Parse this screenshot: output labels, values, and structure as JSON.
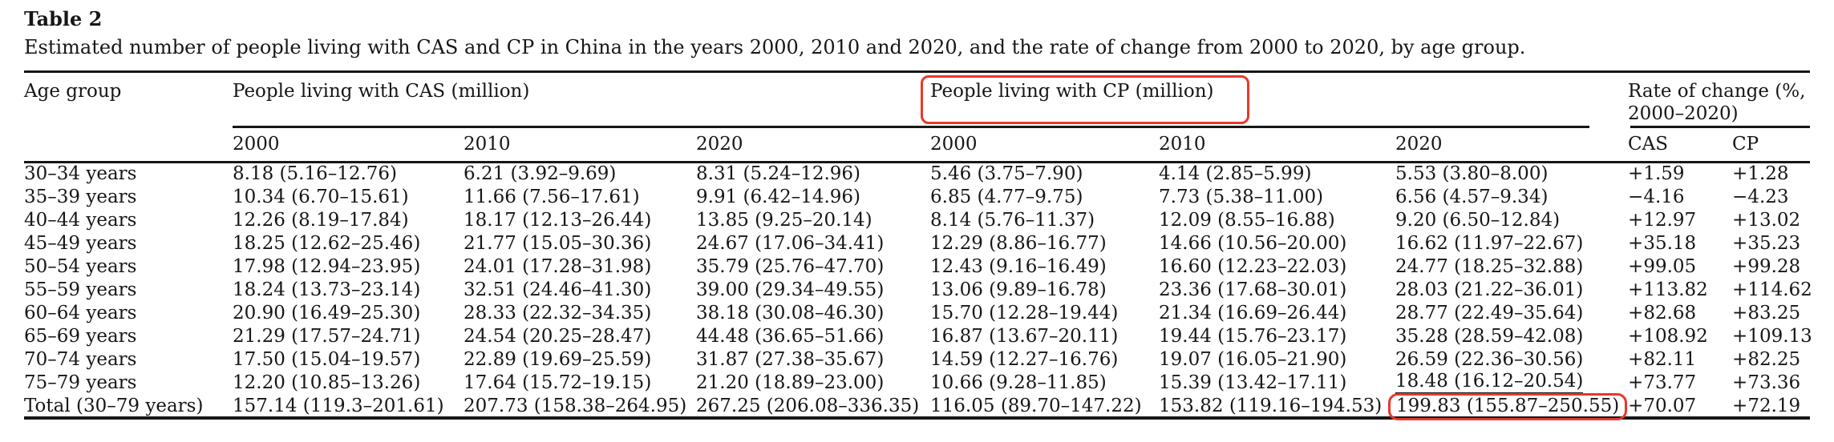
{
  "page": {
    "background_color": "#ffffff",
    "text_color": "#161616",
    "annotation_red": "#e8382a"
  },
  "table": {
    "label": "Table 2",
    "caption": "Estimated number of people living with CAS and CP in China in the years 2000, 2010 and 2020, and the rate of change from 2000 to 2020, by age group.",
    "header": {
      "age_group": "Age group",
      "cas_group": "People living with CAS (million)",
      "cp_group": "People living with CP (million)",
      "rate_group": "Rate of change (%, 2000–2020)",
      "cas_years": [
        "2000",
        "2010",
        "2020"
      ],
      "cp_years": [
        "2000",
        "2010",
        "2020"
      ],
      "rate_cols": [
        "CAS",
        "CP"
      ]
    },
    "rows": [
      {
        "age": "30–34 years",
        "cas": [
          "8.18 (5.16–12.76)",
          "6.21 (3.92–9.69)",
          "8.31 (5.24–12.96)"
        ],
        "cp": [
          "5.46 (3.75–7.90)",
          "4.14 (2.85–5.99)",
          "5.53 (3.80–8.00)"
        ],
        "rate": [
          "+1.59",
          "+1.28"
        ]
      },
      {
        "age": "35–39 years",
        "cas": [
          "10.34 (6.70–15.61)",
          "11.66 (7.56–17.61)",
          "9.91 (6.42–14.96)"
        ],
        "cp": [
          "6.85 (4.77–9.75)",
          "7.73 (5.38–11.00)",
          "6.56 (4.57–9.34)"
        ],
        "rate": [
          "−4.16",
          "−4.23"
        ]
      },
      {
        "age": "40–44 years",
        "cas": [
          "12.26 (8.19–17.84)",
          "18.17 (12.13–26.44)",
          "13.85 (9.25–20.14)"
        ],
        "cp": [
          "8.14 (5.76–11.37)",
          "12.09 (8.55–16.88)",
          "9.20 (6.50–12.84)"
        ],
        "rate": [
          "+12.97",
          "+13.02"
        ]
      },
      {
        "age": "45–49 years",
        "cas": [
          "18.25 (12.62–25.46)",
          "21.77 (15.05–30.36)",
          "24.67 (17.06–34.41)"
        ],
        "cp": [
          "12.29 (8.86–16.77)",
          "14.66 (10.56–20.00)",
          "16.62 (11.97–22.67)"
        ],
        "rate": [
          "+35.18",
          "+35.23"
        ]
      },
      {
        "age": "50–54 years",
        "cas": [
          "17.98 (12.94–23.95)",
          "24.01 (17.28–31.98)",
          "35.79 (25.76–47.70)"
        ],
        "cp": [
          "12.43 (9.16–16.49)",
          "16.60 (12.23–22.03)",
          "24.77 (18.25–32.88)"
        ],
        "rate": [
          "+99.05",
          "+99.28"
        ]
      },
      {
        "age": "55–59 years",
        "cas": [
          "18.24 (13.73–23.14)",
          "32.51 (24.46–41.30)",
          "39.00 (29.34–49.55)"
        ],
        "cp": [
          "13.06 (9.89–16.78)",
          "23.36 (17.68–30.01)",
          "28.03 (21.22–36.01)"
        ],
        "rate": [
          "+113.82",
          "+114.62"
        ]
      },
      {
        "age": "60–64 years",
        "cas": [
          "20.90 (16.49–25.30)",
          "28.33 (22.32–34.35)",
          "38.18 (30.08–46.30)"
        ],
        "cp": [
          "15.70 (12.28–19.44)",
          "21.34 (16.69–26.44)",
          "28.77 (22.49–35.64)"
        ],
        "rate": [
          "+82.68",
          "+83.25"
        ]
      },
      {
        "age": "65–69 years",
        "cas": [
          "21.29 (17.57–24.71)",
          "24.54 (20.25–28.47)",
          "44.48 (36.65–51.66)"
        ],
        "cp": [
          "16.87 (13.67–20.11)",
          "19.44 (15.76–23.17)",
          "35.28 (28.59–42.08)"
        ],
        "rate": [
          "+108.92",
          "+109.13"
        ]
      },
      {
        "age": "70–74 years",
        "cas": [
          "17.50 (15.04–19.57)",
          "22.89 (19.69–25.59)",
          "31.87 (27.38–35.67)"
        ],
        "cp": [
          "14.59 (12.27–16.76)",
          "19.07 (16.05–21.90)",
          "26.59 (22.36–30.56)"
        ],
        "rate": [
          "+82.11",
          "+82.25"
        ]
      },
      {
        "age": "75–79 years",
        "cas": [
          "12.20 (10.85–13.26)",
          "17.64 (15.72–19.15)",
          "21.20 (18.89–23.00)"
        ],
        "cp": [
          "10.66 (9.28–11.85)",
          "15.39 (13.42–17.11)",
          "18.48 (16.12–20.54)"
        ],
        "rate": [
          "+73.77",
          "+73.36"
        ]
      },
      {
        "age": "Total (30–79 years)",
        "cas": [
          "157.14 (119.3–201.61)",
          "207.73 (158.38–264.95)",
          "267.25 (206.08–336.35)"
        ],
        "cp": [
          "116.05 (89.70–147.22)",
          "153.82 (119.16–194.53)",
          "199.83 (155.87–250.55)"
        ],
        "rate": [
          "+70.07",
          "+72.19"
        ]
      }
    ]
  },
  "annotations": {
    "red_boxed_header": "People living with CP (million)",
    "red_boxed_cell": {
      "row_index": 10,
      "column": "cp_2020",
      "value": "199.83 (155.87–250.55)"
    },
    "underlined_cell": {
      "row_index": 9,
      "column": "cp_2020",
      "value": "18.48 (16.12–20.54)"
    }
  }
}
